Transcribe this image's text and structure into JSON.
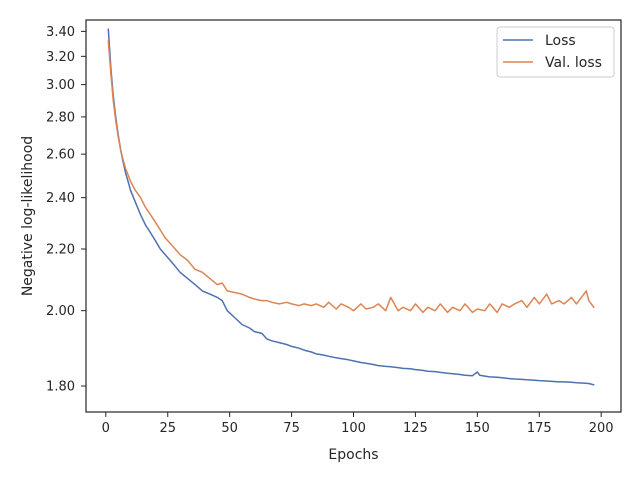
{
  "chart_data": {
    "type": "line",
    "title": "",
    "xlabel": "Epochs",
    "ylabel": "Negative log-likelihood",
    "xlim": [
      -8,
      208
    ],
    "ylim": [
      1.74,
      3.5
    ],
    "y_scale": "reciprocal",
    "x_ticks": [
      0,
      25,
      50,
      75,
      100,
      125,
      150,
      175,
      200
    ],
    "x_tick_labels": [
      "0",
      "25",
      "50",
      "75",
      "100",
      "125",
      "150",
      "175",
      "200"
    ],
    "y_ticks": [
      1.8,
      2.0,
      2.2,
      2.4,
      2.6,
      2.8,
      3.0,
      3.2,
      3.4
    ],
    "y_tick_labels": [
      "1.80",
      "2.00",
      "2.20",
      "2.40",
      "2.60",
      "2.80",
      "3.00",
      "3.20",
      "3.40"
    ],
    "grid": false,
    "legend_position": "top-right",
    "series": [
      {
        "name": "Loss",
        "color": "#4c72b0",
        "x": [
          1,
          2,
          3,
          4,
          5,
          6,
          7,
          8,
          9,
          10,
          12,
          14,
          16,
          18,
          20,
          22,
          24,
          26,
          28,
          30,
          33,
          36,
          39,
          42,
          45,
          47,
          49,
          52,
          55,
          58,
          60,
          63,
          65,
          67,
          70,
          73,
          75,
          78,
          80,
          83,
          85,
          88,
          90,
          93,
          95,
          98,
          100,
          103,
          105,
          108,
          110,
          113,
          115,
          118,
          120,
          123,
          125,
          128,
          130,
          133,
          135,
          138,
          140,
          143,
          145,
          148,
          150,
          151,
          153,
          155,
          158,
          160,
          163,
          165,
          168,
          170,
          173,
          175,
          178,
          180,
          183,
          185,
          188,
          190,
          193,
          195,
          197
        ],
        "values": [
          3.42,
          3.12,
          2.93,
          2.8,
          2.7,
          2.62,
          2.56,
          2.51,
          2.47,
          2.43,
          2.38,
          2.33,
          2.29,
          2.26,
          2.23,
          2.2,
          2.18,
          2.16,
          2.14,
          2.12,
          2.1,
          2.08,
          2.06,
          2.05,
          2.04,
          2.03,
          2.0,
          1.98,
          1.96,
          1.95,
          1.94,
          1.935,
          1.92,
          1.915,
          1.91,
          1.905,
          1.9,
          1.895,
          1.89,
          1.885,
          1.88,
          1.877,
          1.874,
          1.87,
          1.868,
          1.865,
          1.862,
          1.858,
          1.856,
          1.853,
          1.85,
          1.848,
          1.847,
          1.845,
          1.843,
          1.842,
          1.84,
          1.838,
          1.836,
          1.835,
          1.833,
          1.831,
          1.83,
          1.828,
          1.826,
          1.825,
          1.834,
          1.826,
          1.824,
          1.822,
          1.821,
          1.82,
          1.818,
          1.817,
          1.816,
          1.815,
          1.814,
          1.813,
          1.812,
          1.811,
          1.81,
          1.81,
          1.809,
          1.808,
          1.807,
          1.806,
          1.803
        ]
      },
      {
        "name": "Val. loss",
        "color": "#dd8452",
        "x": [
          1,
          2,
          3,
          4,
          5,
          6,
          7,
          8,
          9,
          10,
          12,
          14,
          16,
          18,
          20,
          22,
          24,
          26,
          28,
          30,
          33,
          36,
          39,
          42,
          45,
          47,
          49,
          52,
          55,
          58,
          60,
          63,
          65,
          67,
          70,
          73,
          75,
          78,
          80,
          83,
          85,
          88,
          90,
          93,
          95,
          98,
          100,
          103,
          105,
          108,
          110,
          113,
          115,
          118,
          120,
          123,
          125,
          128,
          130,
          133,
          135,
          138,
          140,
          143,
          145,
          148,
          150,
          153,
          155,
          158,
          160,
          163,
          165,
          168,
          170,
          173,
          175,
          178,
          180,
          183,
          185,
          188,
          190,
          192,
          194,
          195,
          197
        ],
        "values": [
          3.32,
          3.08,
          2.9,
          2.78,
          2.69,
          2.62,
          2.57,
          2.53,
          2.5,
          2.47,
          2.43,
          2.4,
          2.36,
          2.33,
          2.3,
          2.27,
          2.24,
          2.22,
          2.2,
          2.18,
          2.16,
          2.13,
          2.12,
          2.1,
          2.08,
          2.085,
          2.06,
          2.055,
          2.05,
          2.04,
          2.035,
          2.03,
          2.03,
          2.025,
          2.02,
          2.025,
          2.02,
          2.015,
          2.02,
          2.015,
          2.02,
          2.01,
          2.025,
          2.005,
          2.02,
          2.01,
          2.0,
          2.02,
          2.005,
          2.01,
          2.02,
          2.0,
          2.04,
          2.0,
          2.01,
          2.0,
          2.02,
          1.995,
          2.01,
          2.0,
          2.02,
          1.995,
          2.01,
          2.0,
          2.02,
          1.995,
          2.005,
          2.0,
          2.02,
          1.995,
          2.02,
          2.01,
          2.02,
          2.03,
          2.01,
          2.04,
          2.02,
          2.05,
          2.02,
          2.03,
          2.02,
          2.04,
          2.02,
          2.04,
          2.06,
          2.03,
          2.01
        ]
      }
    ]
  }
}
